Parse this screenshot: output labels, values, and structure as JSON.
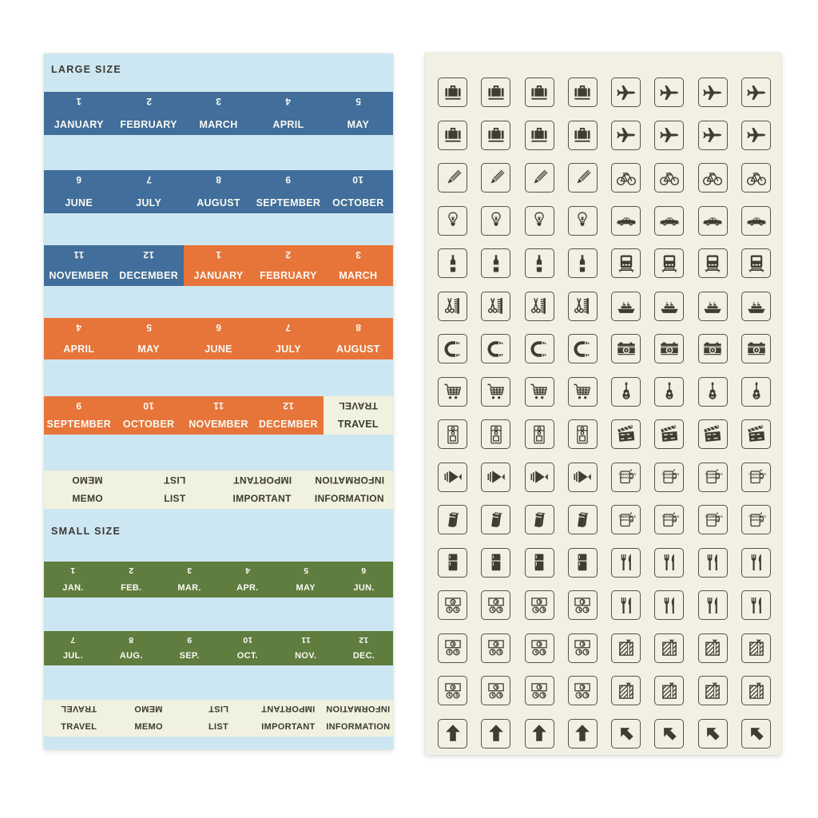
{
  "page": {
    "background": "#ffffff"
  },
  "left_sheet": {
    "background": "#cde7f2",
    "large_label": "LARGE SIZE",
    "small_label": "SMALL SIZE",
    "colors": {
      "blue": "#416e9a",
      "orange": "#e7753a",
      "green": "#5f7d3e",
      "cream": "#f0f1de",
      "text_light": "#fafaf5",
      "text_dark": "#3b3a31"
    },
    "rows": [
      {
        "cells": [
          {
            "flip": "1",
            "label": "JANUARY",
            "color": "blue"
          },
          {
            "flip": "2",
            "label": "FEBRUARY",
            "color": "blue"
          },
          {
            "flip": "3",
            "label": "MARCH",
            "color": "blue"
          },
          {
            "flip": "4",
            "label": "APRIL",
            "color": "blue"
          },
          {
            "flip": "5",
            "label": "MAY",
            "color": "blue"
          }
        ]
      },
      {
        "cells": [
          {
            "flip": "6",
            "label": "JUNE",
            "color": "blue"
          },
          {
            "flip": "7",
            "label": "JULY",
            "color": "blue"
          },
          {
            "flip": "8",
            "label": "AUGUST",
            "color": "blue"
          },
          {
            "flip": "9",
            "label": "SEPTEMBER",
            "color": "blue"
          },
          {
            "flip": "10",
            "label": "OCTOBER",
            "color": "blue"
          }
        ]
      },
      {
        "cells": [
          {
            "flip": "11",
            "label": "NOVEMBER",
            "color": "blue"
          },
          {
            "flip": "12",
            "label": "DECEMBER",
            "color": "blue"
          },
          {
            "flip": "1",
            "label": "JANUARY",
            "color": "orange"
          },
          {
            "flip": "2",
            "label": "FEBRUARY",
            "color": "orange"
          },
          {
            "flip": "3",
            "label": "MARCH",
            "color": "orange"
          }
        ]
      },
      {
        "cells": [
          {
            "flip": "4",
            "label": "APRIL",
            "color": "orange"
          },
          {
            "flip": "5",
            "label": "MAY",
            "color": "orange"
          },
          {
            "flip": "6",
            "label": "JUNE",
            "color": "orange"
          },
          {
            "flip": "7",
            "label": "JULY",
            "color": "orange"
          },
          {
            "flip": "8",
            "label": "AUGUST",
            "color": "orange"
          }
        ]
      },
      {
        "cells": [
          {
            "flip": "9",
            "label": "SEPTEMBER",
            "color": "orange"
          },
          {
            "flip": "10",
            "label": "OCTOBER",
            "color": "orange"
          },
          {
            "flip": "11",
            "label": "NOVEMBER",
            "color": "orange"
          },
          {
            "flip": "12",
            "label": "DECEMBER",
            "color": "orange"
          },
          {
            "flip": "TRAVEL",
            "label": "TRAVEL",
            "color": "cream"
          }
        ]
      },
      {
        "cells": [
          {
            "flip": "MEMO",
            "label": "MEMO",
            "color": "cream"
          },
          {
            "flip": "LIST",
            "label": "LIST",
            "color": "cream"
          },
          {
            "flip": "IMPORTANT",
            "label": "IMPORTANT",
            "color": "cream"
          },
          {
            "flip": "INFORMATION",
            "label": "INFORMATION",
            "color": "cream"
          }
        ]
      },
      {
        "cells": [
          {
            "flip": "1",
            "label": "JAN.",
            "color": "green"
          },
          {
            "flip": "2",
            "label": "FEB.",
            "color": "green"
          },
          {
            "flip": "3",
            "label": "MAR.",
            "color": "green"
          },
          {
            "flip": "4",
            "label": "APR.",
            "color": "green"
          },
          {
            "flip": "5",
            "label": "MAY",
            "color": "green"
          },
          {
            "flip": "6",
            "label": "JUN.",
            "color": "green"
          }
        ]
      },
      {
        "cells": [
          {
            "flip": "7",
            "label": "JUL.",
            "color": "green"
          },
          {
            "flip": "8",
            "label": "AUG.",
            "color": "green"
          },
          {
            "flip": "9",
            "label": "SEP.",
            "color": "green"
          },
          {
            "flip": "10",
            "label": "OCT.",
            "color": "green"
          },
          {
            "flip": "11",
            "label": "NOV.",
            "color": "green"
          },
          {
            "flip": "12",
            "label": "DEC.",
            "color": "green"
          }
        ]
      },
      {
        "cells": [
          {
            "flip": "TRAVEL",
            "label": "TRAVEL",
            "color": "cream"
          },
          {
            "flip": "MEMO",
            "label": "MEMO",
            "color": "cream"
          },
          {
            "flip": "LIST",
            "label": "LIST",
            "color": "cream"
          },
          {
            "flip": "IMPORTANT",
            "label": "IMPORTANT",
            "color": "cream"
          },
          {
            "flip": "INFORMATION",
            "label": "INFORMATION",
            "color": "cream"
          }
        ]
      }
    ]
  },
  "right_sheet": {
    "background": "#f2f0e2",
    "icon_color": "#3e3c33",
    "frame_color": "#54524a",
    "mug_text": [
      "TRAVELER'S",
      "notebook"
    ],
    "money_symbols": {
      "note": "¥",
      "coin_left": "€",
      "coin_right": "$"
    },
    "rows": [
      {
        "left": "suitcase",
        "right": "airplane"
      },
      {
        "left": "suitcase",
        "right": "airplane"
      },
      {
        "left": "pencil",
        "right": "bicycle"
      },
      {
        "left": "lightbulb",
        "right": "car"
      },
      {
        "left": "bottle",
        "right": "train"
      },
      {
        "left": "scissors-comb",
        "right": "ship"
      },
      {
        "left": "telephone",
        "right": "camera"
      },
      {
        "left": "shopping-cart",
        "right": "guitar"
      },
      {
        "left": "envelope",
        "right": "clapperboard"
      },
      {
        "left": "megaphone",
        "right": "mug"
      },
      {
        "left": "book",
        "right": "mug"
      },
      {
        "left": "refrigerator",
        "right": "cutlery"
      },
      {
        "left": "money",
        "right": "cutlery"
      },
      {
        "left": "money",
        "right": "gift"
      },
      {
        "left": "money",
        "right": "gift"
      },
      {
        "left": "arrow-up",
        "right": "arrow-upleft"
      }
    ]
  }
}
